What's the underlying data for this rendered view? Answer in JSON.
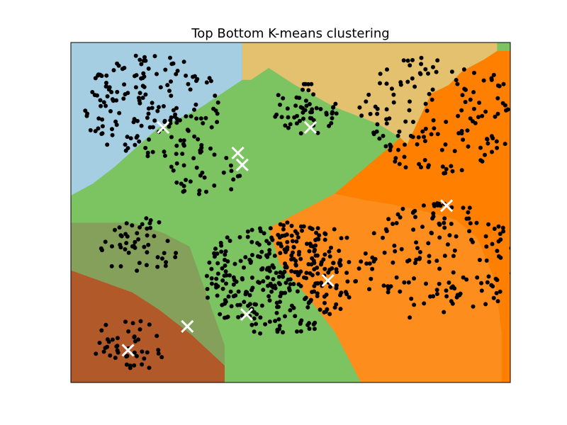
{
  "chart_data": {
    "type": "scatter",
    "title": "Top Bottom K-means clustering",
    "xlabel": "",
    "ylabel": "",
    "xlim": [
      -1.0,
      1.0
    ],
    "ylim": [
      -1.0,
      1.0
    ],
    "grid": false,
    "legend": "none",
    "point_color": "#000000",
    "centroid_color": "#ffffff",
    "regions": [
      {
        "name": "top-left",
        "color": "#a6cee3"
      },
      {
        "name": "top-middle",
        "color": "#e3c16f"
      },
      {
        "name": "right",
        "color": "#ff7f00"
      },
      {
        "name": "center",
        "color": "#7bc461"
      },
      {
        "name": "left-middle",
        "color": "#85a05a"
      },
      {
        "name": "bottom-left",
        "color": "#b15928"
      },
      {
        "name": "bottom-right",
        "color": "#fd8d1c"
      }
    ],
    "blobs": [
      {
        "cx": -0.62,
        "cy": 0.62,
        "r": 0.33,
        "n": 170
      },
      {
        "cx": 0.08,
        "cy": 0.62,
        "r": 0.17,
        "n": 55
      },
      {
        "cx": 0.68,
        "cy": 0.58,
        "r": 0.37,
        "n": 150
      },
      {
        "cx": -0.39,
        "cy": 0.23,
        "r": 0.16,
        "n": 35
      },
      {
        "cx": -0.69,
        "cy": -0.2,
        "r": 0.18,
        "n": 50
      },
      {
        "cx": -0.05,
        "cy": -0.39,
        "r": 0.35,
        "n": 300
      },
      {
        "cx": 0.1,
        "cy": -0.3,
        "r": 0.25,
        "n": 50
      },
      {
        "cx": 0.67,
        "cy": -0.29,
        "r": 0.37,
        "n": 150
      },
      {
        "cx": -0.73,
        "cy": -0.78,
        "r": 0.17,
        "n": 45
      },
      {
        "cx": 0.71,
        "cy": 0.03,
        "r": 0.08,
        "n": 6
      }
    ],
    "centroids": [
      {
        "x": -0.58,
        "y": 0.5
      },
      {
        "x": 0.09,
        "y": 0.5
      },
      {
        "x": -0.24,
        "y": 0.35
      },
      {
        "x": -0.22,
        "y": 0.28
      },
      {
        "x": 0.71,
        "y": 0.04
      },
      {
        "x": 0.17,
        "y": -0.4
      },
      {
        "x": -0.2,
        "y": -0.6
      },
      {
        "x": -0.47,
        "y": -0.67
      },
      {
        "x": -0.74,
        "y": -0.81
      }
    ]
  }
}
